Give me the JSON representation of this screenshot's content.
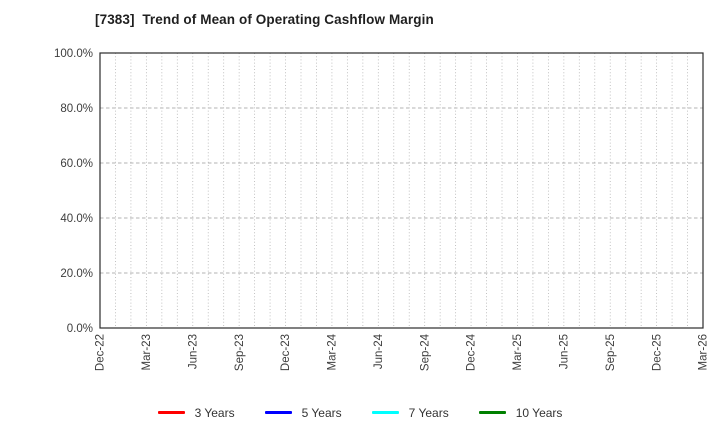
{
  "chart_data": {
    "type": "line",
    "title": "[7383]  Trend of Mean of Operating Cashflow Margin",
    "x_axis": {
      "tick_labels": [
        "Dec-22",
        "Mar-23",
        "Jun-23",
        "Sep-23",
        "Dec-23",
        "Mar-24",
        "Jun-24",
        "Sep-24",
        "Dec-24",
        "Mar-25",
        "Jun-25",
        "Sep-25",
        "Dec-25",
        "Mar-26"
      ],
      "tick_label_rotation": 90,
      "minor_gridline_interval": "1 month",
      "months_span": 39
    },
    "y_axis": {
      "tick_labels": [
        "0.0%",
        "20.0%",
        "40.0%",
        "60.0%",
        "80.0%",
        "100.0%"
      ],
      "tick_values": [
        0,
        20,
        40,
        60,
        80,
        100
      ],
      "range": [
        0,
        100
      ],
      "unit": "%"
    },
    "grid": true,
    "series": [
      {
        "name": "3 Years",
        "color": "#ff0000",
        "x": [],
        "values": []
      },
      {
        "name": "5 Years",
        "color": "#0000ff",
        "x": [],
        "values": []
      },
      {
        "name": "7 Years",
        "color": "#00ffff",
        "x": [],
        "values": []
      },
      {
        "name": "10 Years",
        "color": "#008000",
        "x": [],
        "values": []
      }
    ],
    "legend_position": "bottom-center",
    "plotted_points_visible": "none"
  },
  "style_colors": {
    "spine": "#2b2b2b",
    "gridline": "#b3b3b3",
    "tick_label": "#3d3d3d",
    "title": "#1f1f1f",
    "background": "#ffffff"
  }
}
